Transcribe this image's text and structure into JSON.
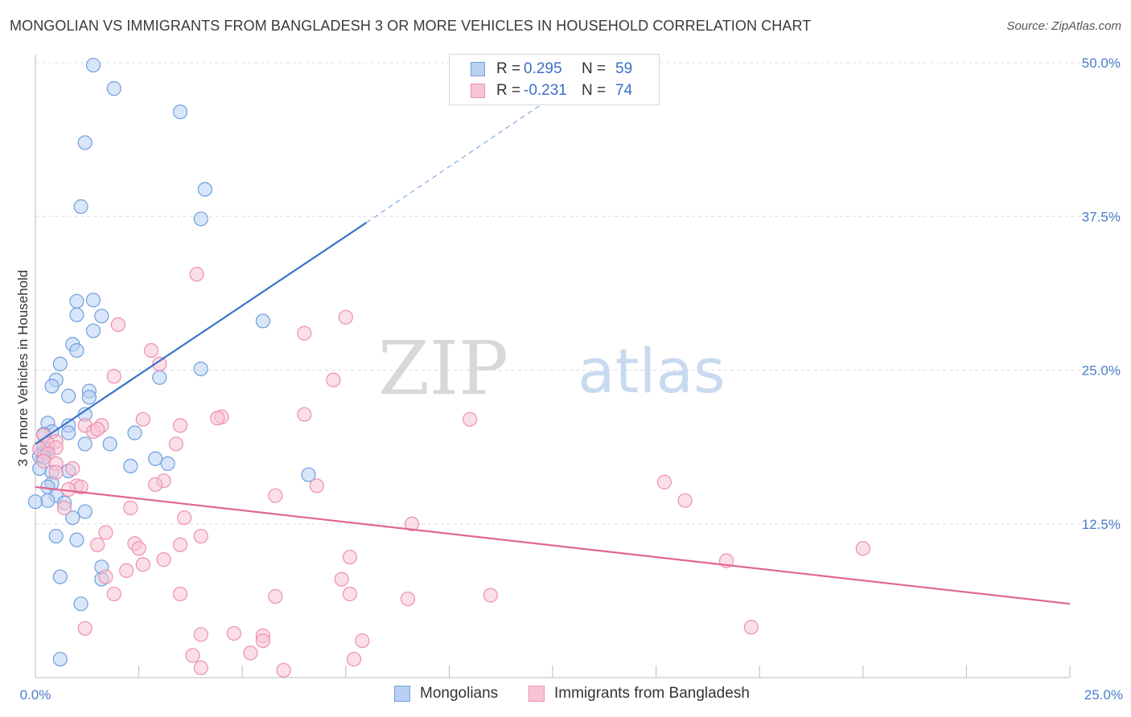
{
  "title": "MONGOLIAN VS IMMIGRANTS FROM BANGLADESH 3 OR MORE VEHICLES IN HOUSEHOLD CORRELATION CHART",
  "source": "Source: ZipAtlas.com",
  "watermark": {
    "zip": "ZIP",
    "atlas": "atlas"
  },
  "legend_top": [
    {
      "r_label": "R =",
      "r_value": "0.295",
      "n_label": "N =",
      "n_value": "59",
      "color": "#6f9fe0",
      "fill": "#b9d0f2"
    },
    {
      "r_label": "R =",
      "r_value": "-0.231",
      "n_label": "N =",
      "n_value": "74",
      "color": "#ee8fb0",
      "fill": "#f7c4d4"
    }
  ],
  "legend_bottom": [
    {
      "label": "Mongolians",
      "color": "#6f9fe0",
      "fill": "#b9d0f2"
    },
    {
      "label": "Immigrants from Bangladesh",
      "color": "#ee8fb0",
      "fill": "#f7c4d4"
    }
  ],
  "chart_data": {
    "type": "scatter",
    "title": "MONGOLIAN VS IMMIGRANTS FROM BANGLADESH 3 OR MORE VEHICLES IN HOUSEHOLD CORRELATION CHART",
    "xlabel": "",
    "ylabel": "3 or more Vehicles in Household",
    "xlim": [
      0,
      25
    ],
    "ylim": [
      0,
      50
    ],
    "x_tick_labels": [
      "0.0%",
      "25.0%"
    ],
    "y_ticks": [
      12.5,
      25.0,
      37.5,
      50.0
    ],
    "y_tick_labels": [
      "12.5%",
      "25.0%",
      "37.5%",
      "50.0%"
    ],
    "grid": true,
    "series": [
      {
        "name": "Mongolians",
        "color": "#6f9fe0",
        "fill": "#b9d0f2",
        "trend": {
          "x0": 0.0,
          "y0": 19.0,
          "x1": 8.0,
          "y1": 37.0,
          "dash_to_x": 13.5,
          "dash_to_y": 49.5,
          "color": "#3a74c9"
        },
        "points": [
          [
            1.4,
            49.8
          ],
          [
            1.9,
            47.9
          ],
          [
            3.5,
            46.0
          ],
          [
            1.2,
            43.5
          ],
          [
            4.1,
            39.7
          ],
          [
            1.1,
            38.3
          ],
          [
            4.0,
            37.3
          ],
          [
            1.0,
            30.6
          ],
          [
            1.4,
            30.7
          ],
          [
            1.0,
            29.5
          ],
          [
            1.6,
            29.4
          ],
          [
            1.4,
            28.2
          ],
          [
            0.9,
            27.1
          ],
          [
            1.0,
            26.6
          ],
          [
            0.6,
            25.5
          ],
          [
            4.0,
            25.1
          ],
          [
            3.0,
            24.4
          ],
          [
            0.5,
            24.2
          ],
          [
            0.4,
            23.7
          ],
          [
            1.3,
            23.3
          ],
          [
            0.8,
            22.9
          ],
          [
            1.3,
            22.8
          ],
          [
            1.2,
            21.4
          ],
          [
            0.3,
            20.7
          ],
          [
            0.8,
            20.5
          ],
          [
            0.4,
            20.0
          ],
          [
            0.2,
            19.8
          ],
          [
            0.8,
            19.9
          ],
          [
            2.4,
            19.9
          ],
          [
            1.8,
            19.0
          ],
          [
            1.2,
            19.0
          ],
          [
            0.2,
            18.7
          ],
          [
            0.3,
            18.5
          ],
          [
            0.2,
            18.3
          ],
          [
            0.1,
            18.0
          ],
          [
            0.2,
            17.9
          ],
          [
            2.9,
            17.8
          ],
          [
            3.2,
            17.4
          ],
          [
            2.3,
            17.2
          ],
          [
            0.1,
            17.0
          ],
          [
            0.4,
            16.7
          ],
          [
            0.8,
            16.8
          ],
          [
            6.6,
            16.5
          ],
          [
            0.4,
            15.8
          ],
          [
            0.3,
            15.5
          ],
          [
            0.5,
            14.8
          ],
          [
            0.3,
            14.4
          ],
          [
            0.7,
            14.2
          ],
          [
            0.0,
            14.3
          ],
          [
            1.2,
            13.5
          ],
          [
            0.9,
            13.0
          ],
          [
            0.5,
            11.5
          ],
          [
            1.0,
            11.2
          ],
          [
            1.6,
            9.0
          ],
          [
            1.6,
            8.0
          ],
          [
            0.6,
            8.2
          ],
          [
            1.1,
            6.0
          ],
          [
            0.6,
            1.5
          ],
          [
            5.5,
            29.0
          ]
        ]
      },
      {
        "name": "Immigrants from Bangladesh",
        "color": "#ee8fb0",
        "fill": "#f7c4d4",
        "trend": {
          "x0": 0.0,
          "y0": 15.5,
          "x1": 25.0,
          "y1": 6.0,
          "color": "#e0668f"
        },
        "points": [
          [
            3.9,
            32.8
          ],
          [
            7.5,
            29.3
          ],
          [
            2.0,
            28.7
          ],
          [
            6.5,
            28.0
          ],
          [
            2.8,
            26.6
          ],
          [
            3.0,
            25.5
          ],
          [
            1.9,
            24.5
          ],
          [
            7.2,
            24.2
          ],
          [
            4.5,
            21.2
          ],
          [
            6.5,
            21.4
          ],
          [
            4.4,
            21.1
          ],
          [
            2.6,
            21.0
          ],
          [
            10.5,
            21.0
          ],
          [
            3.5,
            20.5
          ],
          [
            1.2,
            20.5
          ],
          [
            1.6,
            20.5
          ],
          [
            1.4,
            20.0
          ],
          [
            1.5,
            20.2
          ],
          [
            0.2,
            19.7
          ],
          [
            0.5,
            19.2
          ],
          [
            0.3,
            19.0
          ],
          [
            0.5,
            18.7
          ],
          [
            3.4,
            19.0
          ],
          [
            0.1,
            18.6
          ],
          [
            0.3,
            18.2
          ],
          [
            0.2,
            17.6
          ],
          [
            0.5,
            17.4
          ],
          [
            0.9,
            17.0
          ],
          [
            0.5,
            16.7
          ],
          [
            3.1,
            16.0
          ],
          [
            2.9,
            15.7
          ],
          [
            6.8,
            15.6
          ],
          [
            1.0,
            15.6
          ],
          [
            1.1,
            15.5
          ],
          [
            0.8,
            15.3
          ],
          [
            15.2,
            15.9
          ],
          [
            5.8,
            14.8
          ],
          [
            15.7,
            14.4
          ],
          [
            2.3,
            13.8
          ],
          [
            0.7,
            13.8
          ],
          [
            3.6,
            13.0
          ],
          [
            9.1,
            12.5
          ],
          [
            1.7,
            11.8
          ],
          [
            4.0,
            11.5
          ],
          [
            2.4,
            10.9
          ],
          [
            1.5,
            10.8
          ],
          [
            2.5,
            10.5
          ],
          [
            3.5,
            10.8
          ],
          [
            20.0,
            10.5
          ],
          [
            7.6,
            9.8
          ],
          [
            3.1,
            9.6
          ],
          [
            2.6,
            9.2
          ],
          [
            16.7,
            9.5
          ],
          [
            2.2,
            8.7
          ],
          [
            1.7,
            8.2
          ],
          [
            7.4,
            8.0
          ],
          [
            1.9,
            6.8
          ],
          [
            3.5,
            6.8
          ],
          [
            5.8,
            6.6
          ],
          [
            7.6,
            6.8
          ],
          [
            9.0,
            6.4
          ],
          [
            11.0,
            6.7
          ],
          [
            1.2,
            4.0
          ],
          [
            4.0,
            3.5
          ],
          [
            4.8,
            3.6
          ],
          [
            5.5,
            3.4
          ],
          [
            5.5,
            3.0
          ],
          [
            17.3,
            4.1
          ],
          [
            7.9,
            3.0
          ],
          [
            5.2,
            2.0
          ],
          [
            3.8,
            1.8
          ],
          [
            7.7,
            1.5
          ],
          [
            4.0,
            0.8
          ],
          [
            6.0,
            0.6
          ]
        ]
      }
    ]
  }
}
